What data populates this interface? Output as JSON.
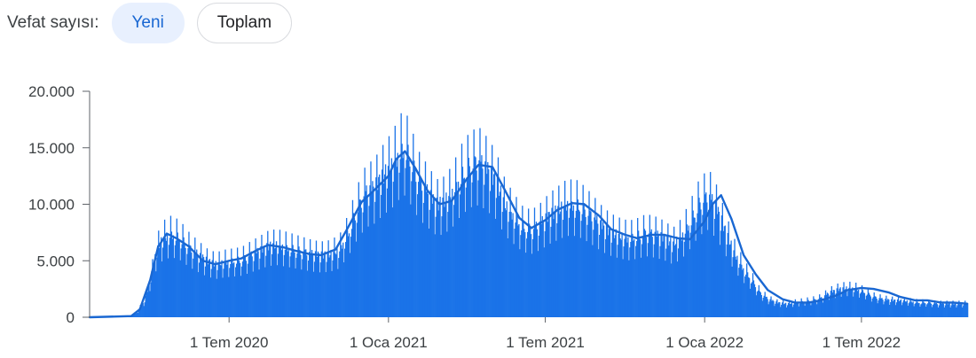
{
  "controls": {
    "label": "Vefat sayısı:",
    "chips": [
      {
        "label": "Yeni",
        "selected": true
      },
      {
        "label": "Toplam",
        "selected": false
      }
    ]
  },
  "colors": {
    "bars": "#1a73e8",
    "average_line": "#1967d2",
    "axis": "#5f6368",
    "chip_active_bg": "#e8f0fe",
    "chip_active_text": "#1967d2"
  },
  "chart_data": {
    "type": "bar",
    "title": "",
    "xlabel": "",
    "ylabel": "",
    "ylim": [
      0,
      20000
    ],
    "xlim": [
      "2020-01-22",
      "2022-10-31"
    ],
    "y_ticks": [
      {
        "value": 0,
        "label": "0"
      },
      {
        "value": 5000,
        "label": "5.000"
      },
      {
        "value": 10000,
        "label": "10.000"
      },
      {
        "value": 15000,
        "label": "15.000"
      },
      {
        "value": 20000,
        "label": "20.000"
      }
    ],
    "x_ticks": [
      {
        "date": "2020-07-01",
        "label": "1 Tem 2020"
      },
      {
        "date": "2021-01-01",
        "label": "1 Oca 2021"
      },
      {
        "date": "2021-07-01",
        "label": "1 Tem 2021"
      },
      {
        "date": "2022-01-01",
        "label": "1 Oca 2022"
      },
      {
        "date": "2022-07-01",
        "label": "1 Tem 2022"
      }
    ],
    "grid": false,
    "series": [
      {
        "kind": "daily-bars",
        "x": [
          "2020-01-22",
          "2020-02-15",
          "2020-03-05",
          "2020-03-15",
          "2020-03-25",
          "2020-04-01",
          "2020-04-08",
          "2020-04-15",
          "2020-04-25",
          "2020-05-05",
          "2020-05-15",
          "2020-05-25",
          "2020-06-05",
          "2020-06-15",
          "2020-06-25",
          "2020-07-05",
          "2020-07-15",
          "2020-07-25",
          "2020-08-05",
          "2020-08-15",
          "2020-08-25",
          "2020-09-05",
          "2020-09-15",
          "2020-09-25",
          "2020-10-05",
          "2020-10-15",
          "2020-10-25",
          "2020-11-05",
          "2020-11-15",
          "2020-11-25",
          "2020-12-05",
          "2020-12-15",
          "2020-12-25",
          "2021-01-05",
          "2021-01-15",
          "2021-01-20",
          "2021-01-28",
          "2021-02-05",
          "2021-02-15",
          "2021-02-25",
          "2021-03-05",
          "2021-03-15",
          "2021-03-25",
          "2021-04-05",
          "2021-04-15",
          "2021-04-25",
          "2021-05-05",
          "2021-05-15",
          "2021-05-25",
          "2021-06-05",
          "2021-06-15",
          "2021-06-25",
          "2021-07-05",
          "2021-07-15",
          "2021-07-25",
          "2021-08-05",
          "2021-08-15",
          "2021-08-25",
          "2021-09-05",
          "2021-09-15",
          "2021-09-25",
          "2021-10-05",
          "2021-10-15",
          "2021-10-25",
          "2021-11-05",
          "2021-11-15",
          "2021-11-25",
          "2021-12-05",
          "2021-12-15",
          "2021-12-25",
          "2022-01-05",
          "2022-01-15",
          "2022-01-25",
          "2022-02-05",
          "2022-02-15",
          "2022-02-25",
          "2022-03-05",
          "2022-03-15",
          "2022-03-25",
          "2022-04-05",
          "2022-04-15",
          "2022-04-25",
          "2022-05-05",
          "2022-05-15",
          "2022-05-25",
          "2022-06-05",
          "2022-06-15",
          "2022-06-25",
          "2022-07-05",
          "2022-07-15",
          "2022-07-25",
          "2022-08-05",
          "2022-08-15",
          "2022-08-25",
          "2022-09-05",
          "2022-09-15",
          "2022-09-25",
          "2022-10-05",
          "2022-10-15",
          "2022-10-31"
        ],
        "values": [
          0,
          20,
          100,
          300,
          1500,
          3500,
          6000,
          7000,
          7400,
          7000,
          6200,
          5600,
          5000,
          4700,
          4900,
          5000,
          5100,
          5500,
          5900,
          6300,
          6400,
          6200,
          6000,
          5800,
          5600,
          5500,
          5600,
          6000,
          7500,
          9500,
          11000,
          11500,
          12500,
          13500,
          14800,
          15000,
          13500,
          12000,
          11000,
          10000,
          10200,
          11000,
          12500,
          13500,
          13800,
          13000,
          12000,
          10000,
          9000,
          8000,
          7800,
          8300,
          9000,
          9500,
          10000,
          10000,
          9500,
          8800,
          8000,
          7500,
          7200,
          7000,
          7200,
          7500,
          7300,
          7000,
          6500,
          7200,
          8500,
          10000,
          10800,
          9500,
          7500,
          5500,
          4200,
          3200,
          2200,
          1600,
          1300,
          1200,
          1300,
          1400,
          1500,
          1700,
          2200,
          2500,
          2600,
          2500,
          2200,
          1800,
          1600,
          1500,
          1500,
          1400,
          1300,
          1300,
          1200,
          1200,
          1200,
          1200
        ]
      },
      {
        "kind": "7-day-average",
        "x": [
          "2020-01-22",
          "2020-03-10",
          "2020-03-20",
          "2020-04-01",
          "2020-04-10",
          "2020-04-20",
          "2020-05-01",
          "2020-05-15",
          "2020-06-01",
          "2020-06-15",
          "2020-07-01",
          "2020-07-15",
          "2020-08-01",
          "2020-08-15",
          "2020-09-01",
          "2020-09-15",
          "2020-10-01",
          "2020-10-15",
          "2020-11-01",
          "2020-11-15",
          "2020-12-01",
          "2020-12-15",
          "2021-01-01",
          "2021-01-10",
          "2021-01-20",
          "2021-02-01",
          "2021-02-15",
          "2021-03-01",
          "2021-03-15",
          "2021-04-01",
          "2021-04-15",
          "2021-05-01",
          "2021-05-15",
          "2021-06-01",
          "2021-06-15",
          "2021-07-01",
          "2021-07-15",
          "2021-08-01",
          "2021-08-15",
          "2021-09-01",
          "2021-09-15",
          "2021-10-01",
          "2021-10-15",
          "2021-11-01",
          "2021-11-15",
          "2021-12-01",
          "2021-12-15",
          "2022-01-01",
          "2022-01-10",
          "2022-01-20",
          "2022-02-01",
          "2022-02-15",
          "2022-03-01",
          "2022-03-15",
          "2022-04-01",
          "2022-04-15",
          "2022-05-01",
          "2022-05-15",
          "2022-06-01",
          "2022-06-15",
          "2022-07-01",
          "2022-07-15",
          "2022-08-01",
          "2022-08-15",
          "2022-09-01",
          "2022-09-15",
          "2022-10-01",
          "2022-10-15",
          "2022-10-31"
        ],
        "values": [
          0,
          100,
          700,
          3300,
          6200,
          7400,
          7000,
          6300,
          5000,
          4700,
          5000,
          5200,
          5900,
          6400,
          6200,
          5900,
          5600,
          5500,
          6000,
          7900,
          10200,
          11200,
          12500,
          14000,
          14700,
          13200,
          11200,
          10000,
          10300,
          12200,
          13500,
          13300,
          11300,
          8800,
          7900,
          8600,
          9500,
          10100,
          10000,
          9000,
          7800,
          7300,
          7000,
          7300,
          7300,
          7000,
          6900,
          8500,
          10000,
          10800,
          8700,
          5500,
          3800,
          2400,
          1600,
          1300,
          1300,
          1500,
          1900,
          2400,
          2600,
          2500,
          2200,
          1800,
          1500,
          1500,
          1300,
          1300,
          1200
        ]
      }
    ]
  }
}
